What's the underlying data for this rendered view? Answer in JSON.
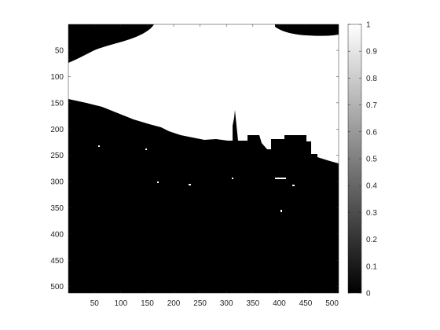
{
  "figure": {
    "image": {
      "description_palette": "binary black/white thresholded image of a city skyline with a TV tower",
      "x_ticks": [
        "50",
        "100",
        "150",
        "200",
        "250",
        "300",
        "350",
        "400",
        "450",
        "500"
      ],
      "y_ticks": [
        "50",
        "100",
        "150",
        "200",
        "250",
        "300",
        "350",
        "400",
        "450",
        "500"
      ],
      "xlim": [
        1,
        512
      ],
      "ylim": [
        1,
        512
      ]
    },
    "colorbar": {
      "ticks": [
        "0",
        "0.1",
        "0.2",
        "0.3",
        "0.4",
        "0.5",
        "0.6",
        "0.7",
        "0.8",
        "0.9",
        "1"
      ],
      "range": [
        0,
        1
      ],
      "colormap": "gray",
      "low_color": "#000000",
      "high_color": "#ffffff"
    }
  }
}
